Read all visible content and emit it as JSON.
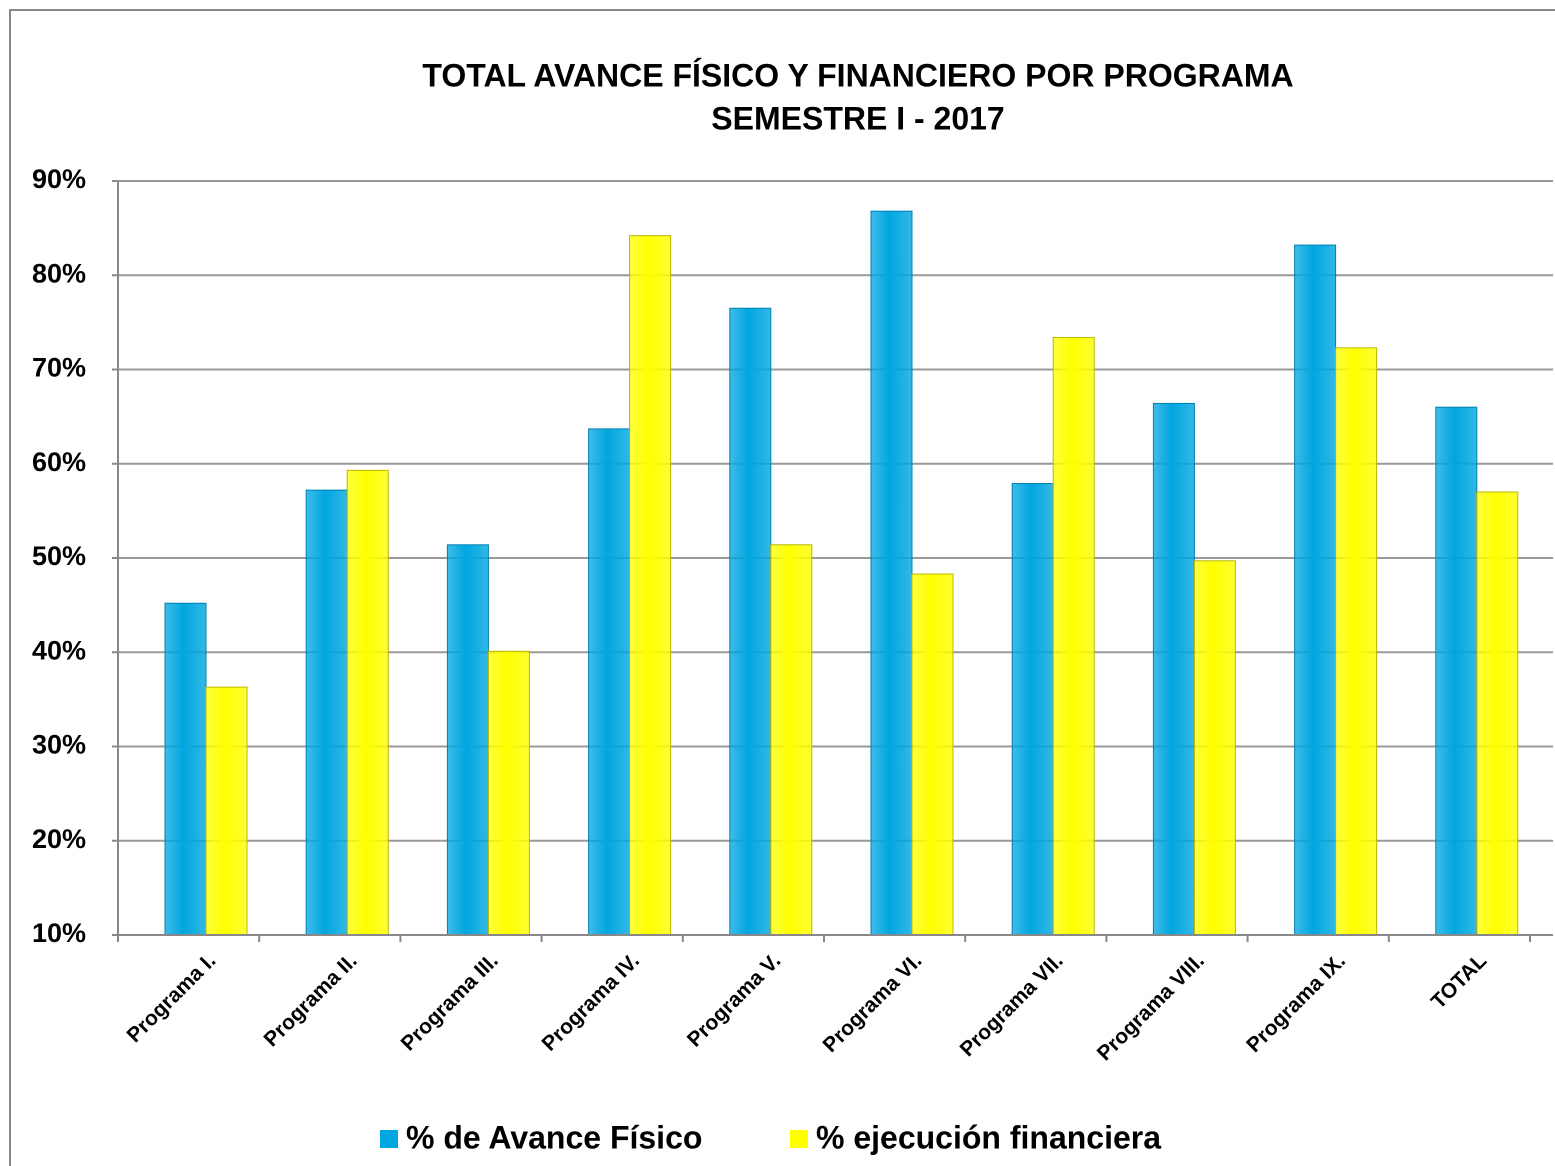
{
  "chart_data": {
    "type": "bar",
    "title": "TOTAL AVANCE FÍSICO Y FINANCIERO POR PROGRAMA",
    "subtitle": "SEMESTRE I - 2017",
    "categories": [
      "Programa I.",
      "Programa II.",
      "Programa III.",
      "Programa IV.",
      "Programa V.",
      "Programa VI.",
      "Programa VII.",
      "Programa VIII.",
      "Programa IX.",
      "TOTAL"
    ],
    "series": [
      {
        "name": "% de Avance Físico",
        "color": "#00a6e0",
        "values": [
          45.2,
          57.2,
          51.4,
          63.7,
          76.5,
          86.8,
          57.9,
          66.4,
          83.2,
          66.0
        ]
      },
      {
        "name": "% ejecución financiera",
        "color": "#ffff00",
        "values": [
          36.3,
          59.3,
          40.1,
          84.2,
          51.4,
          48.3,
          73.4,
          49.7,
          72.3,
          57.0
        ]
      }
    ],
    "ylim": [
      10,
      90
    ],
    "yticks": [
      {
        "value": 10,
        "label": "10%"
      },
      {
        "value": 20,
        "label": "20%"
      },
      {
        "value": 30,
        "label": "30%"
      },
      {
        "value": 40,
        "label": "40%"
      },
      {
        "value": 50,
        "label": "50%"
      },
      {
        "value": 60,
        "label": "60%"
      },
      {
        "value": 70,
        "label": "70%"
      },
      {
        "value": 80,
        "label": "80%"
      },
      {
        "value": 90,
        "label": "90%"
      }
    ],
    "grid": true,
    "legend": "bottom"
  }
}
